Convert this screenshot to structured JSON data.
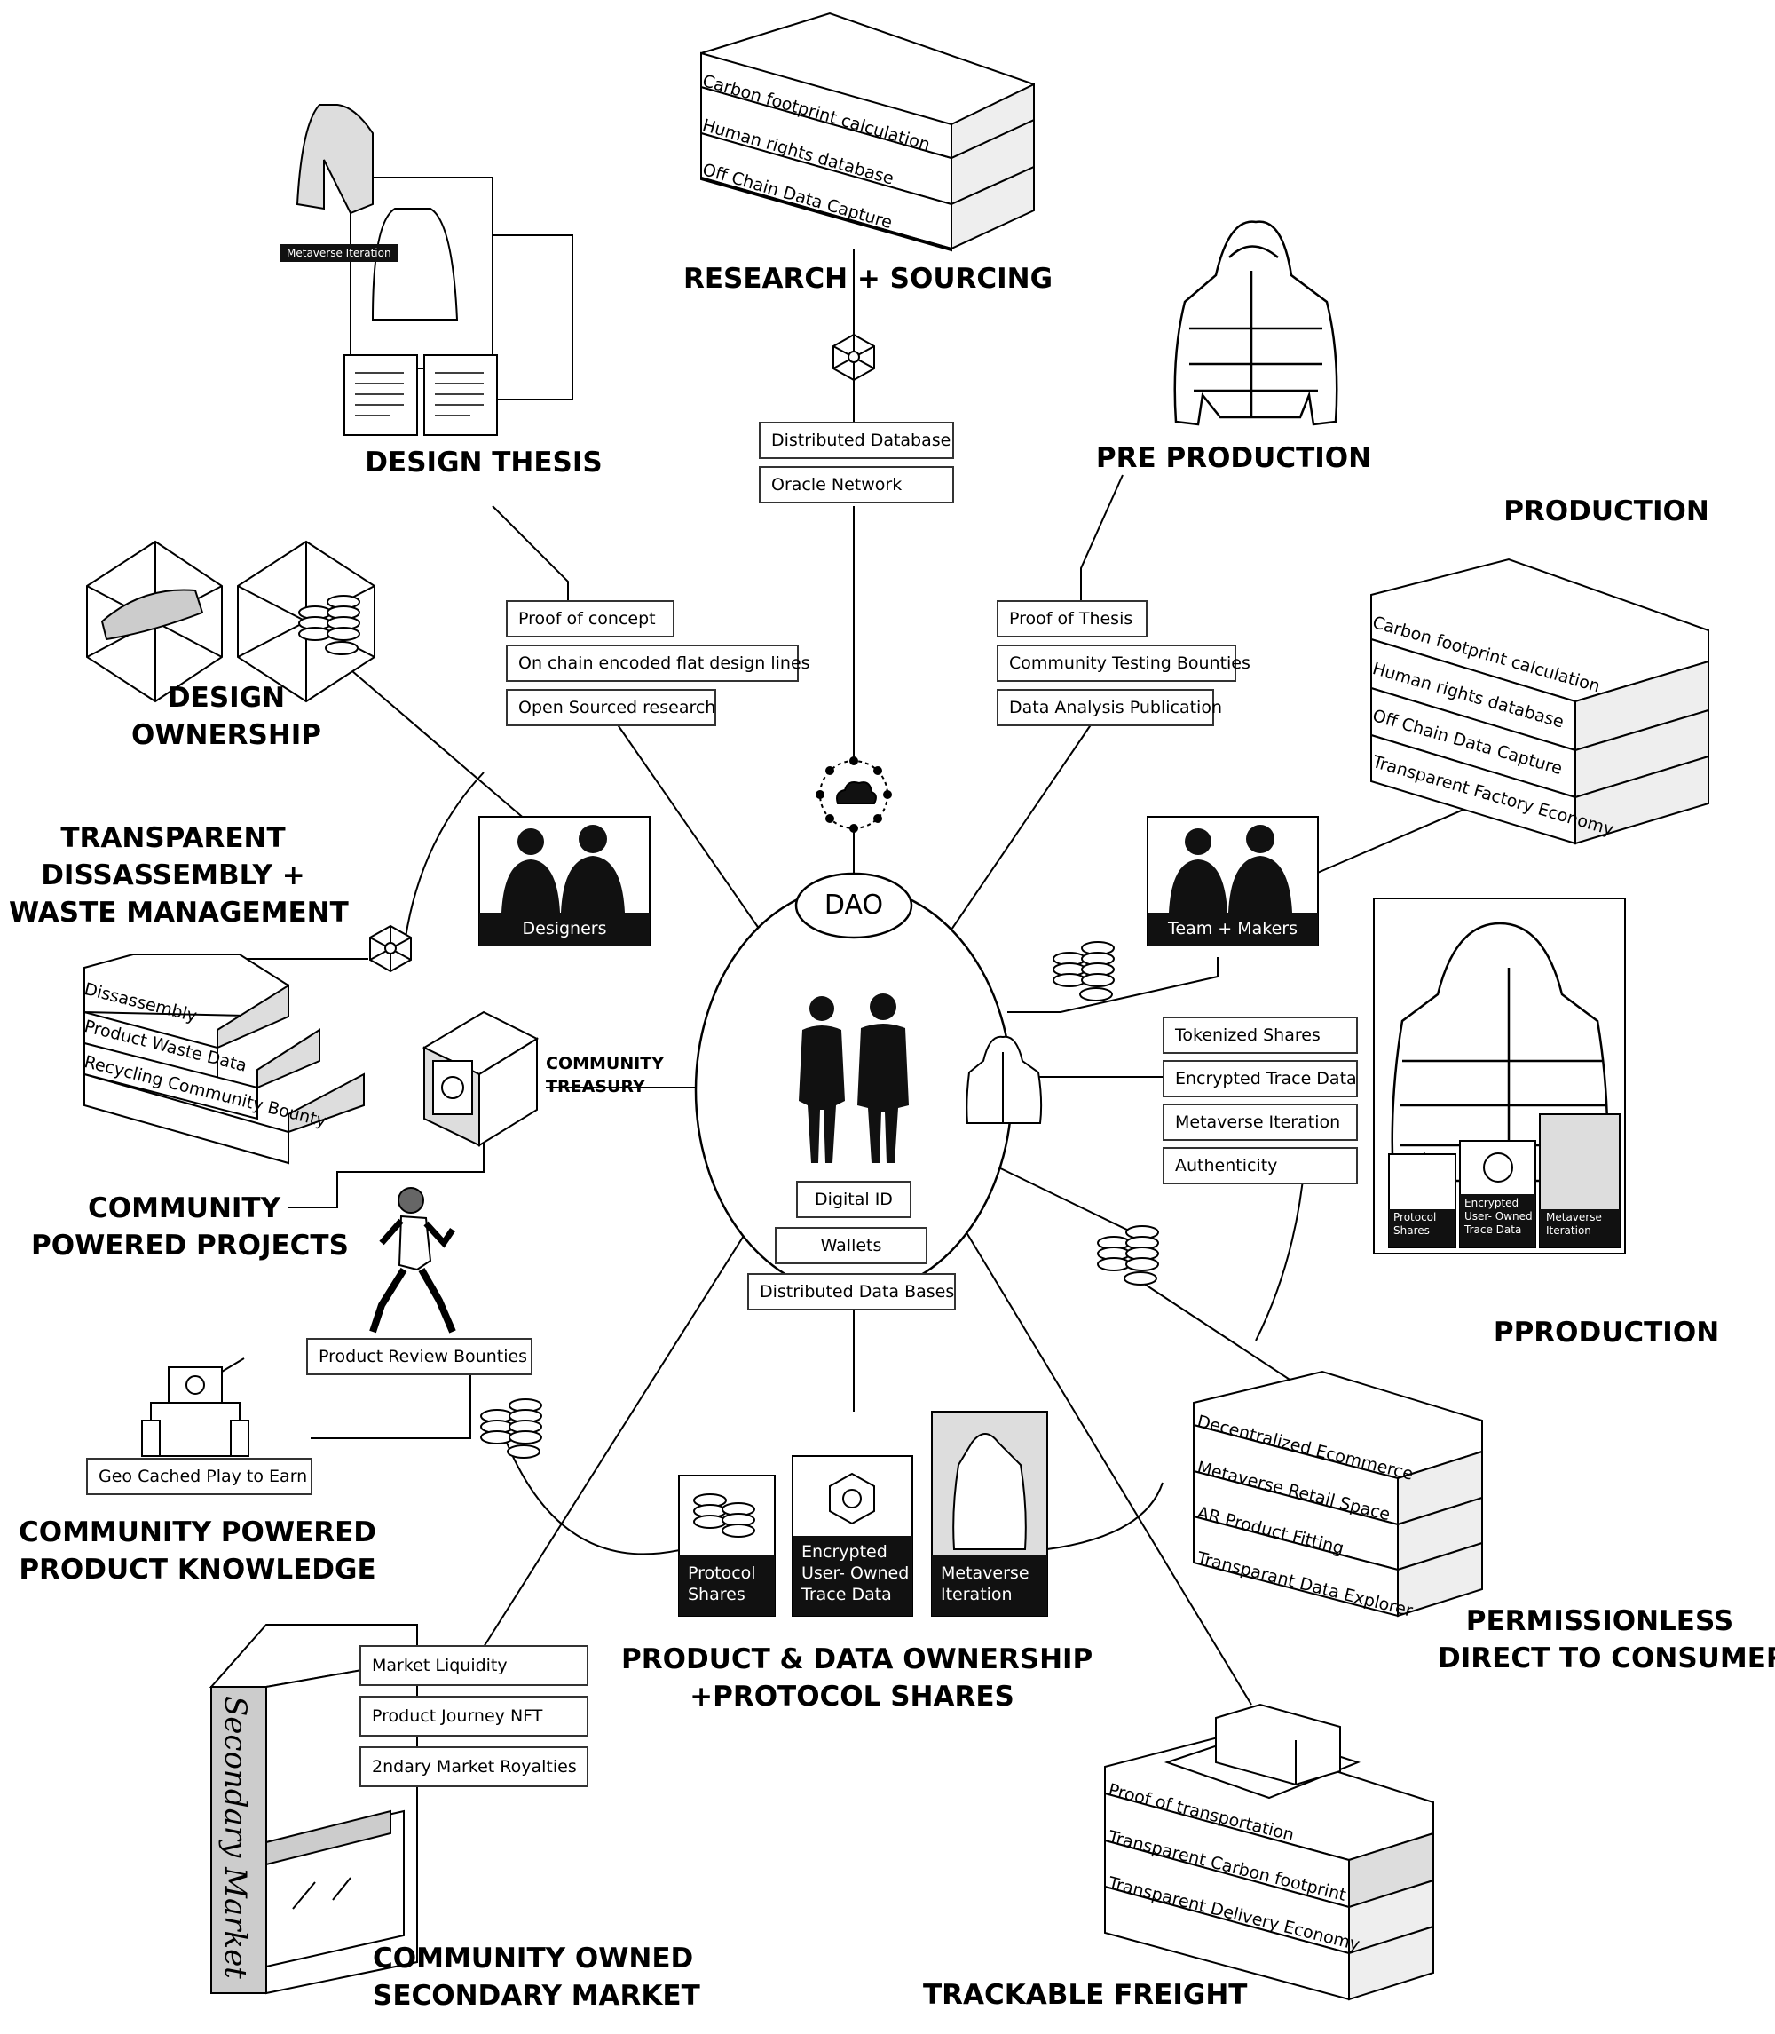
{
  "headings": {
    "research": "RESEARCH + SOURCING",
    "design_thesis": "DESIGN THESIS",
    "pre_production": "PRE PRODUCTION",
    "production": "PRODUCTION",
    "design_ownership": [
      "DESIGN",
      "OWNERSHIP"
    ],
    "transparent": [
      "TRANSPARENT",
      "DISSASSEMBLY +",
      "WASTE MANAGEMENT"
    ],
    "community_projects": [
      "COMMUNITY",
      "POWERED PROJECTS"
    ],
    "community_knowledge": [
      "COMMUNITY POWERED",
      "PRODUCT KNOWLEDGE"
    ],
    "pproduction": "PPRODUCTION",
    "permissionless": [
      "PERMISSIONLESS",
      "DIRECT TO CONSUMER"
    ],
    "product_data": [
      "PRODUCT & DATA OWNERSHIP",
      "+PROTOCOL SHARES"
    ],
    "community_market": [
      "COMMUNITY OWNED",
      "SECONDARY MARKET"
    ],
    "freight": "TRACKABLE FREIGHT"
  },
  "center": {
    "dao": "DAO",
    "boxes": [
      "Digital ID",
      "Wallets",
      "Distributed Data Bases"
    ],
    "treasury": [
      "COMMUNITY",
      "TREASURY"
    ]
  },
  "research_stack": [
    "Carbon footprint calculation",
    "Human rights database",
    "Off Chain Data Capture"
  ],
  "research_boxes": [
    "Distributed Database",
    "Oracle Network"
  ],
  "design_boxes": [
    "Proof of concept",
    "On chain encoded flat design lines",
    "Open Sourced research"
  ],
  "preprod_boxes": [
    "Proof of Thesis",
    "Community Testing Bounties",
    "Data Analysis Publication"
  ],
  "production_stack": [
    "Carbon footprint calculation",
    "Human rights database",
    "Off Chain Data Capture",
    "Transparent Factory Economy"
  ],
  "groups": {
    "designers": "Designers",
    "makers": "Team + Makers"
  },
  "metaverse_tag": "Metaverse Iteration",
  "product_boxes": [
    "Tokenized Shares",
    "Encrypted Trace Data",
    "Metaverse Iteration",
    "Authenticity"
  ],
  "product_panels": [
    [
      "Protocol",
      "Shares"
    ],
    [
      "Encrypted",
      "User- Owned",
      "Trace Data"
    ],
    [
      "Metaverse",
      "Iteration"
    ]
  ],
  "waste_stack": [
    "Dissassembly",
    "Product Waste Data",
    "Recycling Community Bounty"
  ],
  "consumer_stack": [
    "Decentralized Ecommerce",
    "Metaverse Retail Space",
    "AR Product Fitting",
    "Transparant Data Explorer"
  ],
  "freight_stack": [
    "Proof of transportation",
    "Transparent Carbon footprint",
    "Transparent Delivery Economy"
  ],
  "review_box": "Product Review Bounties",
  "geo_box": "Geo Cached Play to Earn",
  "market_boxes": [
    "Market Liquidity",
    "Product Journey NFT",
    "2ndary Market Royalties"
  ],
  "market_sign": "Secondary Market",
  "bottom_panels": [
    [
      "Protocol",
      "Shares"
    ],
    [
      "Encrypted",
      "User- Owned",
      "Trace Data"
    ],
    [
      "Metaverse",
      "Iteration"
    ]
  ]
}
